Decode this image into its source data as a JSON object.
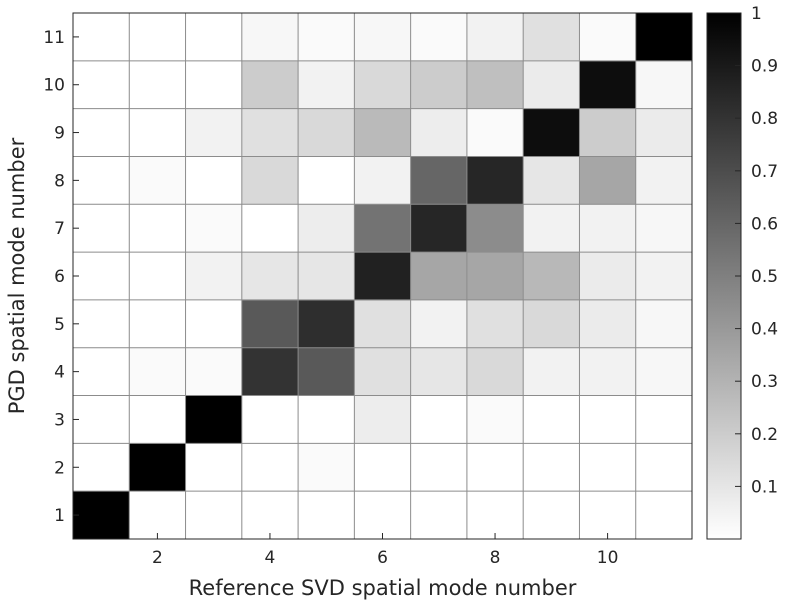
{
  "chart_data": {
    "type": "heatmap",
    "xlabel": "Reference SVD spatial mode number",
    "ylabel": "PGD spatial mode number",
    "x_categories": [
      1,
      2,
      3,
      4,
      5,
      6,
      7,
      8,
      9,
      10,
      11
    ],
    "y_categories": [
      1,
      2,
      3,
      4,
      5,
      6,
      7,
      8,
      9,
      10,
      11
    ],
    "x_tick_labels": [
      "2",
      "4",
      "6",
      "8",
      "10"
    ],
    "y_tick_labels": [
      "1",
      "2",
      "3",
      "4",
      "5",
      "6",
      "7",
      "8",
      "9",
      "10",
      "11"
    ],
    "colorbar": {
      "range": [
        0,
        1
      ],
      "tick_labels": [
        "0.1",
        "0.2",
        "0.3",
        "0.4",
        "0.5",
        "0.6",
        "0.7",
        "0.8",
        "0.9",
        "1"
      ],
      "colormap": "white-to-black"
    },
    "grid": true,
    "values": [
      [
        1.0,
        0.0,
        0.0,
        0.0,
        0.0,
        0.0,
        0.0,
        0.0,
        0.0,
        0.0,
        0.0
      ],
      [
        0.0,
        1.0,
        0.0,
        0.0,
        0.02,
        0.0,
        0.0,
        0.0,
        0.0,
        0.0,
        0.0
      ],
      [
        0.0,
        0.0,
        1.0,
        0.0,
        0.0,
        0.07,
        0.0,
        0.02,
        0.0,
        0.0,
        0.0
      ],
      [
        0.0,
        0.02,
        0.02,
        0.8,
        0.65,
        0.12,
        0.1,
        0.15,
        0.05,
        0.05,
        0.03
      ],
      [
        0.0,
        0.0,
        0.0,
        0.65,
        0.82,
        0.12,
        0.05,
        0.12,
        0.15,
        0.08,
        0.03
      ],
      [
        0.0,
        0.0,
        0.05,
        0.1,
        0.1,
        0.87,
        0.35,
        0.35,
        0.28,
        0.08,
        0.05
      ],
      [
        0.0,
        0.0,
        0.02,
        0.0,
        0.07,
        0.55,
        0.85,
        0.45,
        0.05,
        0.05,
        0.03
      ],
      [
        0.0,
        0.02,
        0.0,
        0.15,
        0.0,
        0.05,
        0.6,
        0.85,
        0.1,
        0.35,
        0.05
      ],
      [
        0.0,
        0.0,
        0.05,
        0.12,
        0.15,
        0.27,
        0.07,
        0.02,
        0.95,
        0.2,
        0.08
      ],
      [
        0.0,
        0.0,
        0.0,
        0.2,
        0.05,
        0.15,
        0.2,
        0.25,
        0.08,
        0.95,
        0.03
      ],
      [
        0.0,
        0.0,
        0.0,
        0.03,
        0.02,
        0.03,
        0.02,
        0.05,
        0.12,
        0.02,
        1.0
      ]
    ]
  }
}
